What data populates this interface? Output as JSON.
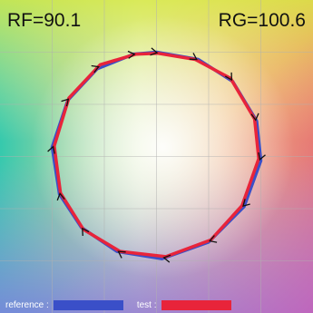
{
  "metrics": {
    "rf": "RF=90.1",
    "rg": "RG=100.6"
  },
  "legend": {
    "reference_label": "reference :",
    "test_label": "test :"
  },
  "colors": {
    "reference": "#3a4fc8",
    "test": "#e8243a",
    "arrow": "#111111",
    "grid": "#b0b0b0"
  },
  "chart_data": {
    "type": "line",
    "title": "",
    "xlabel": "",
    "ylabel": "",
    "xlim": [
      -1.5,
      1.5
    ],
    "ylim": [
      -1.5,
      1.5
    ],
    "grid": true,
    "legend_position": "bottom-left",
    "annotations": [
      "RF=90.1",
      "RG=100.6"
    ],
    "series": [
      {
        "name": "reference",
        "x": [
          0.0,
          0.4,
          0.73,
          0.96,
          1.0,
          0.84,
          0.5,
          0.05,
          -0.38,
          -0.72,
          -0.93,
          -1.0,
          -0.85,
          -0.57,
          -0.22
        ],
        "y": [
          1.0,
          0.93,
          0.72,
          0.34,
          -0.04,
          -0.48,
          -0.82,
          -0.98,
          -0.91,
          -0.68,
          -0.36,
          0.09,
          0.54,
          0.84,
          0.98
        ]
      },
      {
        "name": "test",
        "x": [
          0.01,
          0.37,
          0.71,
          0.94,
          0.98,
          0.82,
          0.52,
          0.09,
          -0.35,
          -0.7,
          -0.92,
          -0.98,
          -0.84,
          -0.54,
          -0.2
        ],
        "y": [
          0.99,
          0.93,
          0.75,
          0.36,
          -0.02,
          -0.47,
          -0.8,
          -0.96,
          -0.91,
          -0.7,
          -0.35,
          0.1,
          0.56,
          0.88,
          0.98
        ]
      }
    ]
  }
}
